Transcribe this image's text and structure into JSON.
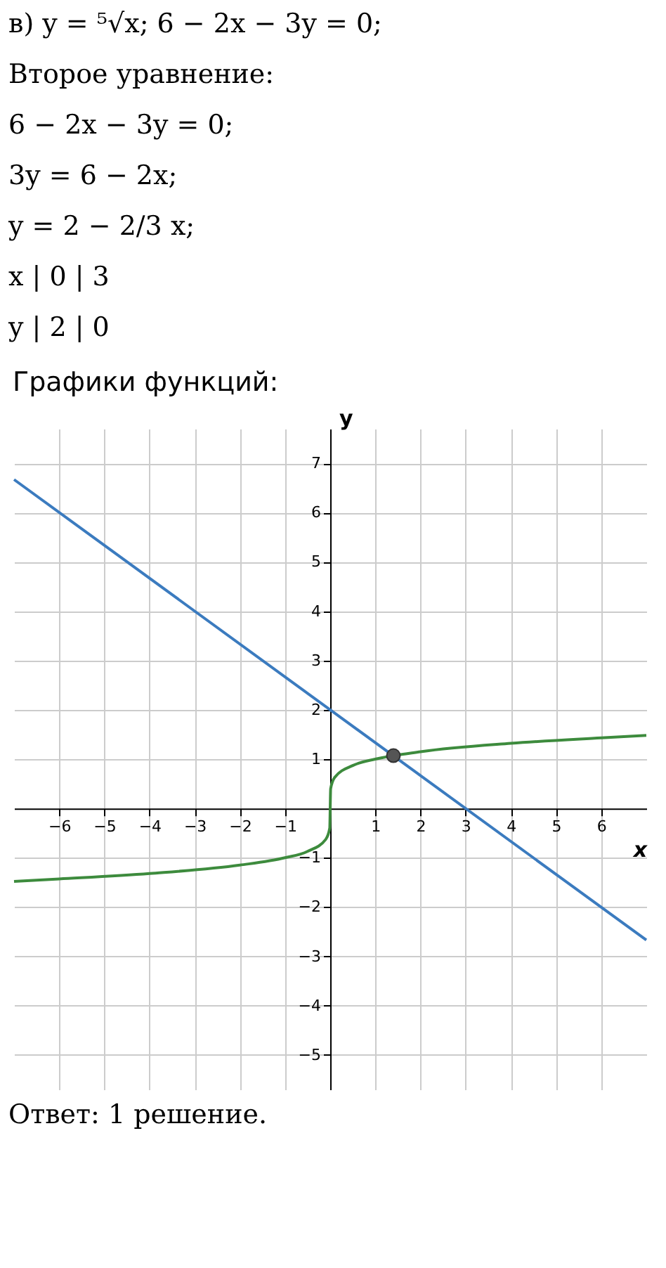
{
  "chart_data": {
    "type": "line",
    "title": "Графики функций:",
    "xlabel": "x",
    "ylabel": "y",
    "annotations": [
      "в) y = ⁵√x; 6 − 2x − 3y = 0;",
      "Второе уравнение:",
      "6 − 2x − 3y = 0;",
      "3y = 6 − 2x;",
      "y = 2 − 2/3 x;",
      "x   |   0   |   3",
      "y   |   2   |   0",
      "Ответ: 1 решение."
    ],
    "series": [
      {
        "color": "#3b7bbf",
        "x": [
          -7,
          7
        ],
        "values": [
          6.67,
          -2.67
        ]
      },
      {
        "color": "#3d8b3d",
        "x": [
          -7,
          -6,
          -4,
          -2,
          -1,
          -0.5,
          -0.1,
          -0.01,
          0,
          0.01,
          0.1,
          0.5,
          1,
          2,
          4,
          6,
          7
        ],
        "values": [
          -1.48,
          -1.43,
          -1.32,
          -1.15,
          -1,
          -0.87,
          -0.63,
          -0.4,
          0,
          0.4,
          0.63,
          0.87,
          1,
          1.15,
          1.32,
          1.43,
          1.48
        ]
      },
      {
        "type": "scatter",
        "color": "#555555",
        "x": [
          1.4
        ],
        "values": [
          1.07
        ]
      }
    ],
    "grid": true,
    "xlim": [
      -7,
      7
    ],
    "ylim": [
      -5.7,
      7.7
    ],
    "xticks": [
      -6,
      -5,
      -4,
      -3,
      -2,
      -1,
      1,
      2,
      3,
      4,
      5,
      6
    ],
    "yticks": [
      -5,
      -4,
      -3,
      -2,
      -1,
      1,
      2,
      3,
      4,
      5,
      6,
      7
    ]
  }
}
